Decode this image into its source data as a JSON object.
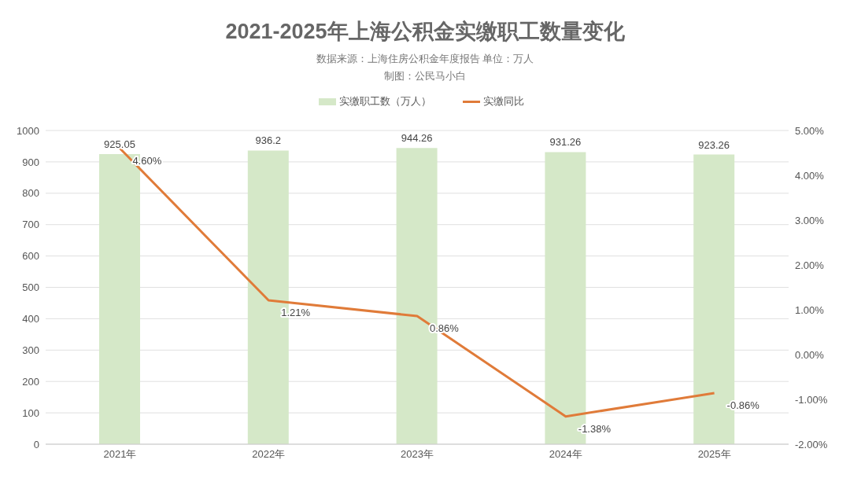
{
  "chart_data": {
    "type": "bar",
    "title": "2021-2025年上海公积金实缴职工数量变化",
    "subtitle": "数据来源：上海住房公积金年度报告 单位：万人",
    "annotations": [
      "制图：公民马小白"
    ],
    "categories": [
      "2021年",
      "2022年",
      "2023年",
      "2024年",
      "2025年"
    ],
    "series": [
      {
        "name": "实缴职工数（万人）",
        "color": "#d5e8c8",
        "values": [
          925.05,
          936.2,
          944.26,
          931.26,
          923.26
        ],
        "value_labels": [
          "925.05",
          "936.2",
          "944.26",
          "931.26",
          "923.26"
        ]
      },
      {
        "name": "实缴同比",
        "type": "line",
        "axis": "y2",
        "color": "#e07b39",
        "values": [
          4.6,
          1.21,
          0.86,
          -1.38,
          -0.86
        ],
        "value_labels": [
          "4.60%",
          "1.21%",
          "0.86%",
          "-1.38%",
          "-0.86%"
        ]
      }
    ],
    "ylim": [
      0,
      1000
    ],
    "yticks": [
      0,
      100,
      200,
      300,
      400,
      500,
      600,
      700,
      800,
      900,
      1000
    ],
    "y2lim": [
      -2,
      5
    ],
    "y2ticks": [
      {
        "value": -2,
        "label": "-2.00%"
      },
      {
        "value": -1,
        "label": "-1.00%"
      },
      {
        "value": 0,
        "label": "0.00%"
      },
      {
        "value": 1,
        "label": "1.00%"
      },
      {
        "value": 2,
        "label": "2.00%"
      },
      {
        "value": 3,
        "label": "3.00%"
      },
      {
        "value": 4,
        "label": "4.00%"
      },
      {
        "value": 5,
        "label": "5.00%"
      }
    ],
    "grid": "y",
    "legend": "top",
    "marker": "none",
    "line_style": "solid"
  }
}
